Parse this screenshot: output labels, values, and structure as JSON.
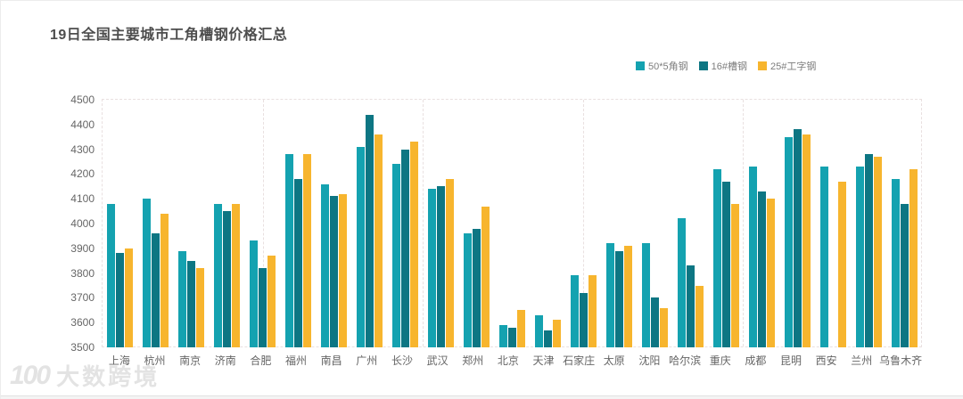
{
  "page": {
    "title": "19日全国主要城市工角槽钢价格汇总",
    "watermark": {
      "logo": "100",
      "text": "大数跨境"
    }
  },
  "chart_data": {
    "type": "bar",
    "title": "19日全国主要城市工角槽钢价格汇总",
    "categories": [
      "上海",
      "杭州",
      "南京",
      "济南",
      "合肥",
      "福州",
      "南昌",
      "广州",
      "长沙",
      "武汉",
      "郑州",
      "北京",
      "天津",
      "石家庄",
      "太原",
      "沈阳",
      "哈尔滨",
      "重庆",
      "成都",
      "昆明",
      "西安",
      "兰州",
      "乌鲁木齐"
    ],
    "series": [
      {
        "name": "50*5角钢",
        "color": "#14a2b0",
        "values": [
          4080,
          4100,
          3890,
          4080,
          3930,
          4280,
          4160,
          4310,
          4240,
          4140,
          3960,
          3590,
          3630,
          3790,
          3920,
          3920,
          4020,
          4220,
          4230,
          4350,
          4230,
          4230,
          4180
        ]
      },
      {
        "name": "16#槽钢",
        "color": "#0d7683",
        "values": [
          3880,
          3960,
          3850,
          4050,
          3820,
          4180,
          4110,
          4440,
          4300,
          4150,
          3980,
          3580,
          3570,
          3720,
          3890,
          3700,
          3830,
          4170,
          4130,
          4380,
          null,
          4280,
          4080
        ]
      },
      {
        "name": "25#工字钢",
        "color": "#f7b52e",
        "values": [
          3900,
          4040,
          3820,
          4080,
          3870,
          4280,
          4120,
          4360,
          4330,
          4180,
          4070,
          3650,
          3610,
          3790,
          3910,
          3660,
          3750,
          4080,
          4100,
          4360,
          4170,
          4270,
          4220
        ]
      }
    ],
    "xlabel": "",
    "ylabel": "",
    "ylim": [
      3500,
      4500
    ],
    "yticks": [
      4500,
      4400,
      4300,
      4200,
      4100,
      4000,
      3900,
      3800,
      3700,
      3600,
      3500
    ],
    "grid": "dashed plot border with vertical dashed split lines, no horizontal gridlines",
    "legend_position": "top-right"
  }
}
